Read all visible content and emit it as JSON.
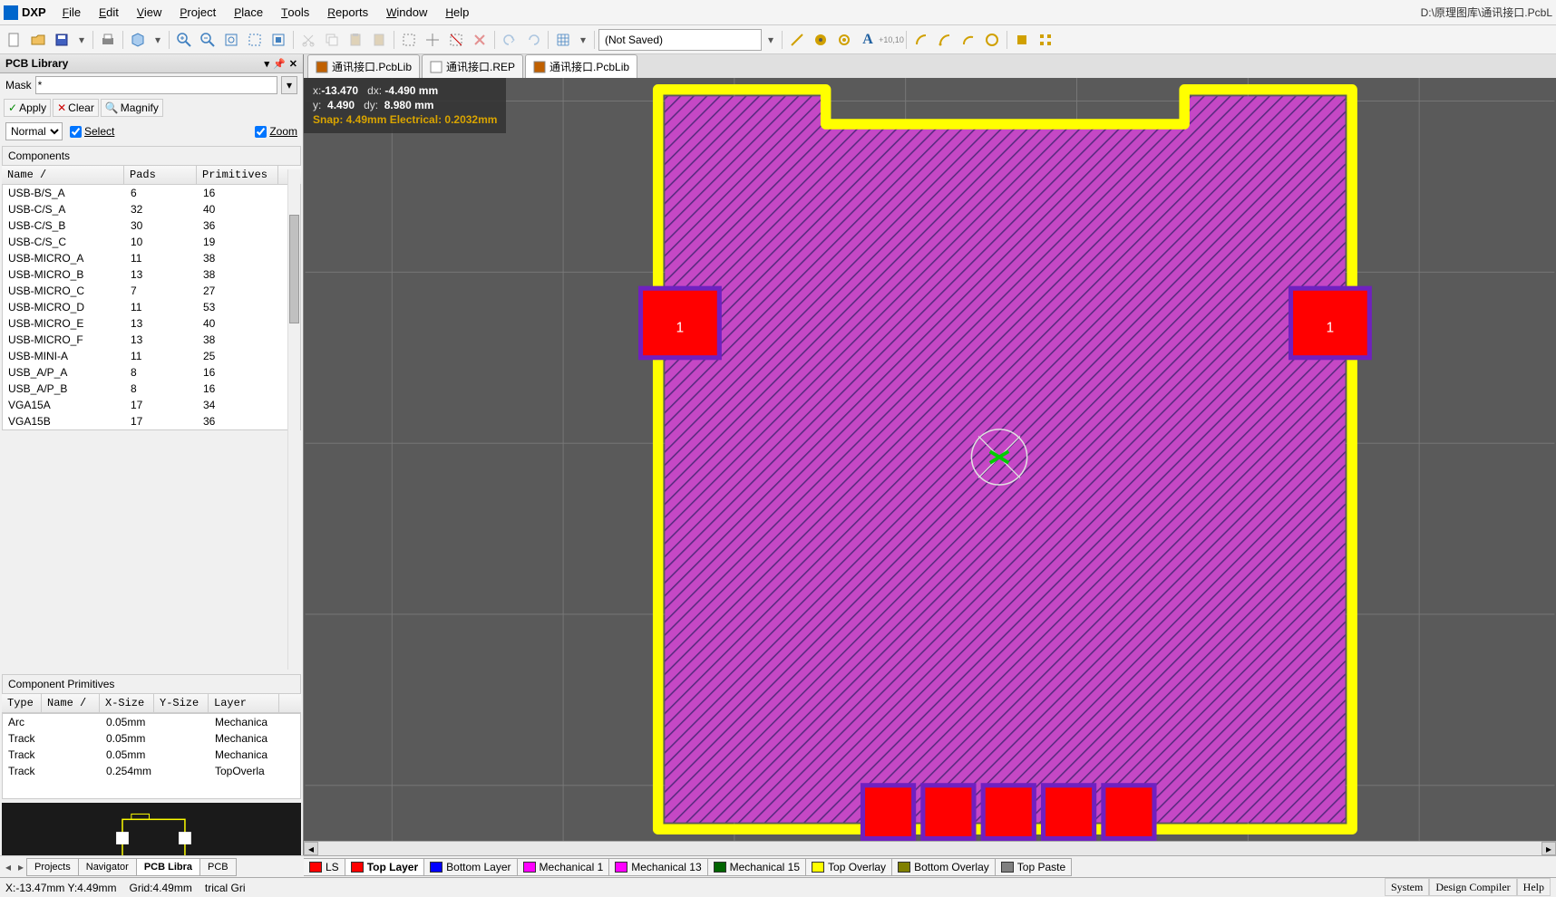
{
  "app": {
    "name": "DXP",
    "filepath": "D:\\原理图库\\通讯接口.PcbL"
  },
  "menus": [
    "File",
    "Edit",
    "View",
    "Project",
    "Place",
    "Tools",
    "Reports",
    "Window",
    "Help"
  ],
  "toolbar": {
    "saved_value": "(Not Saved)"
  },
  "panel": {
    "title": "PCB Library",
    "mask_label": "Mask",
    "mask_value": "*",
    "apply": "Apply",
    "clear": "Clear",
    "magnify": "Magnify",
    "mode": "Normal",
    "select_label": "Select",
    "zoom_label": "Zoom",
    "components_header": "Components",
    "comp_cols": [
      "Name           /",
      "Pads",
      "Primitives"
    ],
    "comp_widths": [
      135,
      80,
      90
    ],
    "components": [
      [
        "USB-B/S_A",
        "6",
        "16"
      ],
      [
        "USB-C/S_A",
        "32",
        "40"
      ],
      [
        "USB-C/S_B",
        "30",
        "36"
      ],
      [
        "USB-C/S_C",
        "10",
        "19"
      ],
      [
        "USB-MICRO_A",
        "11",
        "38"
      ],
      [
        "USB-MICRO_B",
        "13",
        "38"
      ],
      [
        "USB-MICRO_C",
        "7",
        "27"
      ],
      [
        "USB-MICRO_D",
        "11",
        "53"
      ],
      [
        "USB-MICRO_E",
        "13",
        "40"
      ],
      [
        "USB-MICRO_F",
        "13",
        "38"
      ],
      [
        "USB-MINI-A",
        "11",
        "25"
      ],
      [
        "USB_A/P_A",
        "8",
        "16"
      ],
      [
        "USB_A/P_B",
        "8",
        "16"
      ],
      [
        "VGA15A",
        "17",
        "34"
      ],
      [
        "VGA15B",
        "17",
        "36"
      ]
    ],
    "prim_header": "Component Primitives",
    "prim_cols": [
      "Type",
      "Name /",
      "X-Size",
      "Y-Size",
      "Layer"
    ],
    "prim_widths": [
      44,
      64,
      60,
      60,
      78
    ],
    "primitives": [
      [
        "Arc",
        "",
        "0.05mm",
        "",
        "Mechanica"
      ],
      [
        "Track",
        "",
        "0.05mm",
        "",
        "Mechanica"
      ],
      [
        "Track",
        "",
        "0.05mm",
        "",
        "Mechanica"
      ],
      [
        "Track",
        "",
        "0.254mm",
        "",
        "TopOverla"
      ]
    ]
  },
  "left_tabs": {
    "items": [
      "Projects",
      "Navigator",
      "PCB Libra",
      "PCB"
    ],
    "active": 2
  },
  "doc_tabs": {
    "items": [
      "通讯接口.PcbLib",
      "通讯接口.REP",
      "通讯接口.PcbLib"
    ],
    "active": 2
  },
  "hud": {
    "x_label": "x:",
    "x": "-13.470",
    "dx_label": "dx:",
    "dx": "-4.490 mm",
    "y_label": "y:",
    "y": "4.490",
    "dy_label": "dy:",
    "dy": "8.980 mm",
    "snap": "Snap: 4.49mm Electrical: 0.2032mm"
  },
  "pcb": {
    "bg": "#5a5a5a",
    "grid_color": "#7a7a7a",
    "outline_color": "#ffff00",
    "outline_width": 9,
    "fill_color": "#c548c5",
    "fill_stroke": "#5a2a80",
    "pad_fill": "#ff0000",
    "pad_border": "#7020c0",
    "pad_label": "1",
    "bottom_pad_count": 5,
    "origin_color": "#e0e0e0",
    "grid_spacing": 148
  },
  "layer_tabs": [
    {
      "label": "LS",
      "color": "#ff0000",
      "active": false
    },
    {
      "label": "Top Layer",
      "color": "#ff0000",
      "active": true
    },
    {
      "label": "Bottom Layer",
      "color": "#0000ff",
      "active": false
    },
    {
      "label": "Mechanical 1",
      "color": "#ff00ff",
      "active": false
    },
    {
      "label": "Mechanical 13",
      "color": "#ff00ff",
      "active": false
    },
    {
      "label": "Mechanical 15",
      "color": "#006400",
      "active": false
    },
    {
      "label": "Top Overlay",
      "color": "#ffff00",
      "active": false
    },
    {
      "label": "Bottom Overlay",
      "color": "#808000",
      "active": false
    },
    {
      "label": "Top Paste",
      "color": "#808080",
      "active": false
    }
  ],
  "status": {
    "coords": "X:-13.47mm Y:4.49mm",
    "grid": "Grid:4.49mm",
    "mode": "trical Gri",
    "right": [
      "System",
      "Design Compiler",
      "Help"
    ]
  }
}
